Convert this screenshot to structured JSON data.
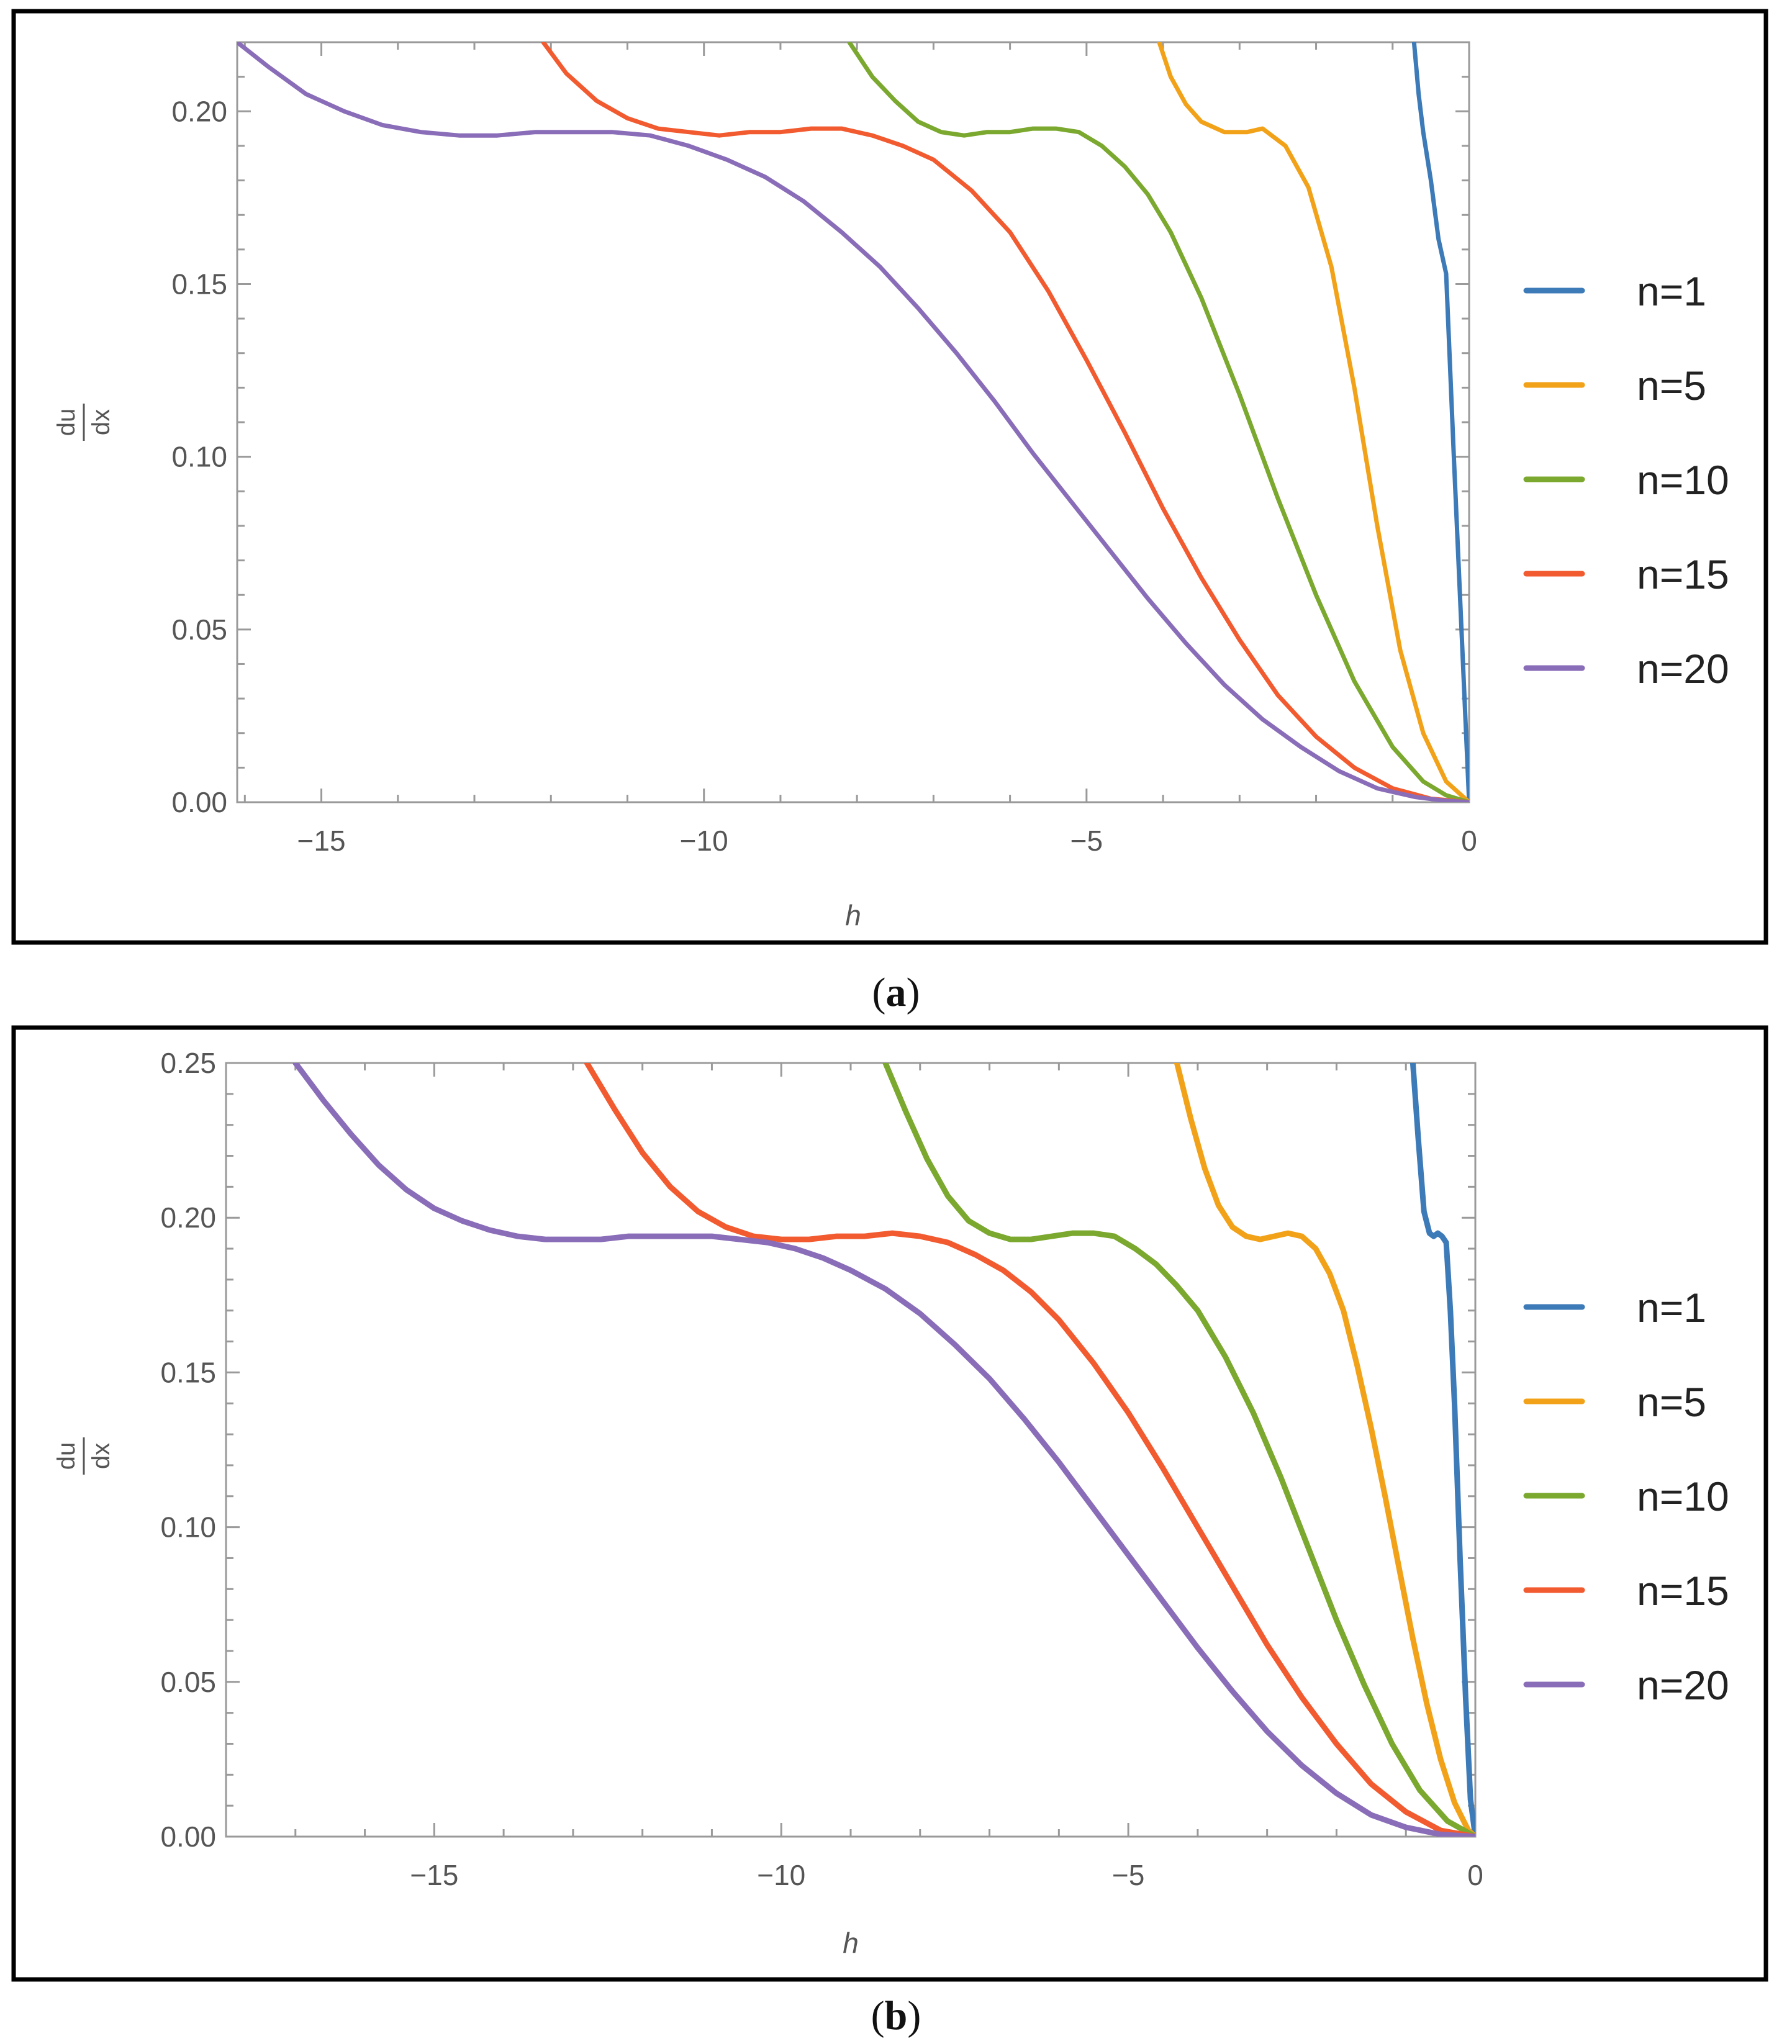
{
  "chart_data": [
    {
      "type": "line",
      "panel": "a",
      "caption_open": "(",
      "caption_letter": "a",
      "caption_close": ")",
      "xlabel": "h",
      "ylabel_num": "du",
      "ylabel_den": "dx",
      "xlim": [
        -16.1,
        0
      ],
      "ylim": [
        0,
        0.22
      ],
      "xticks": [
        -15,
        -10,
        -5,
        0
      ],
      "xtick_labels": [
        "−15",
        "−10",
        "−5",
        "0"
      ],
      "yticks": [
        0,
        0.05,
        0.1,
        0.15,
        0.2
      ],
      "ytick_labels": [
        "0.00",
        "0.05",
        "0.10",
        "0.15",
        "0.20"
      ],
      "legend": "right",
      "series": [
        {
          "name": "n=1",
          "color": "#3d7ab8",
          "x": [
            -0.72,
            -0.66,
            -0.6,
            -0.5,
            -0.4,
            -0.3,
            -0.2,
            -0.1,
            0
          ],
          "y": [
            0.22,
            0.205,
            0.194,
            0.18,
            0.163,
            0.153,
            0.1,
            0.05,
            0
          ]
        },
        {
          "name": "n=5",
          "color": "#f2a218",
          "x": [
            -4.05,
            -3.9,
            -3.7,
            -3.5,
            -3.2,
            -2.9,
            -2.7,
            -2.4,
            -2.1,
            -1.8,
            -1.5,
            -1.2,
            -0.9,
            -0.6,
            -0.3,
            0
          ],
          "y": [
            0.22,
            0.21,
            0.202,
            0.197,
            0.194,
            0.194,
            0.195,
            0.19,
            0.178,
            0.155,
            0.12,
            0.08,
            0.044,
            0.02,
            0.006,
            0
          ]
        },
        {
          "name": "n=10",
          "color": "#7ba82e",
          "x": [
            -8.1,
            -7.8,
            -7.5,
            -7.2,
            -6.9,
            -6.6,
            -6.3,
            -6.0,
            -5.7,
            -5.4,
            -5.1,
            -4.8,
            -4.5,
            -4.2,
            -3.9,
            -3.5,
            -3.0,
            -2.5,
            -2.0,
            -1.5,
            -1.0,
            -0.6,
            -0.3,
            0
          ],
          "y": [
            0.22,
            0.21,
            0.203,
            0.197,
            0.194,
            0.193,
            0.194,
            0.194,
            0.195,
            0.195,
            0.194,
            0.19,
            0.184,
            0.176,
            0.165,
            0.146,
            0.118,
            0.088,
            0.06,
            0.035,
            0.016,
            0.006,
            0.002,
            0
          ]
        },
        {
          "name": "n=15",
          "color": "#f25a2f",
          "x": [
            -12.1,
            -11.8,
            -11.4,
            -11.0,
            -10.6,
            -10.2,
            -9.8,
            -9.4,
            -9.0,
            -8.6,
            -8.2,
            -7.8,
            -7.4,
            -7.0,
            -6.5,
            -6.0,
            -5.5,
            -5.0,
            -4.5,
            -4.0,
            -3.5,
            -3.0,
            -2.5,
            -2.0,
            -1.5,
            -1.0,
            -0.5,
            0
          ],
          "y": [
            0.22,
            0.211,
            0.203,
            0.198,
            0.195,
            0.194,
            0.193,
            0.194,
            0.194,
            0.195,
            0.195,
            0.193,
            0.19,
            0.186,
            0.177,
            0.165,
            0.148,
            0.128,
            0.107,
            0.085,
            0.065,
            0.047,
            0.031,
            0.019,
            0.01,
            0.004,
            0.001,
            0
          ]
        },
        {
          "name": "n=20",
          "color": "#8a6db8",
          "x": [
            -16.1,
            -15.7,
            -15.2,
            -14.7,
            -14.2,
            -13.7,
            -13.2,
            -12.7,
            -12.2,
            -11.7,
            -11.2,
            -10.7,
            -10.2,
            -9.7,
            -9.2,
            -8.7,
            -8.2,
            -7.7,
            -7.2,
            -6.7,
            -6.2,
            -5.7,
            -5.2,
            -4.7,
            -4.2,
            -3.7,
            -3.2,
            -2.7,
            -2.2,
            -1.7,
            -1.2,
            -0.7,
            -0.3,
            0
          ],
          "y": [
            0.22,
            0.213,
            0.205,
            0.2,
            0.196,
            0.194,
            0.193,
            0.193,
            0.194,
            0.194,
            0.194,
            0.193,
            0.19,
            0.186,
            0.181,
            0.174,
            0.165,
            0.155,
            0.143,
            0.13,
            0.116,
            0.101,
            0.087,
            0.073,
            0.059,
            0.046,
            0.034,
            0.024,
            0.016,
            0.009,
            0.004,
            0.0015,
            0.0004,
            0
          ]
        }
      ]
    },
    {
      "type": "line",
      "panel": "b",
      "caption_open": "(",
      "caption_letter": "b",
      "caption_close": ")",
      "xlabel": "h",
      "ylabel_num": "du",
      "ylabel_den": "dx",
      "xlim": [
        -18,
        0
      ],
      "ylim": [
        0,
        0.25
      ],
      "xticks": [
        -15,
        -10,
        -5,
        0
      ],
      "xtick_labels": [
        "−15",
        "−10",
        "−5",
        "0"
      ],
      "yticks": [
        0,
        0.05,
        0.1,
        0.15,
        0.2,
        0.25
      ],
      "ytick_labels": [
        "0.00",
        "0.05",
        "0.10",
        "0.15",
        "0.20",
        "0.25"
      ],
      "legend": "right",
      "series": [
        {
          "name": "n=1",
          "color": "#3d7ab8",
          "x": [
            -0.9,
            -0.82,
            -0.74,
            -0.66,
            -0.6,
            -0.54,
            -0.48,
            -0.42,
            -0.36,
            -0.3,
            -0.22,
            -0.14,
            -0.07,
            0
          ],
          "y": [
            0.25,
            0.225,
            0.202,
            0.195,
            0.194,
            0.195,
            0.194,
            0.192,
            0.17,
            0.14,
            0.09,
            0.045,
            0.012,
            0
          ]
        },
        {
          "name": "n=5",
          "color": "#f2a218",
          "x": [
            -4.3,
            -4.1,
            -3.9,
            -3.7,
            -3.5,
            -3.3,
            -3.1,
            -2.9,
            -2.7,
            -2.5,
            -2.3,
            -2.1,
            -1.9,
            -1.7,
            -1.5,
            -1.3,
            -1.1,
            -0.9,
            -0.7,
            -0.5,
            -0.3,
            -0.1,
            0
          ],
          "y": [
            0.25,
            0.232,
            0.216,
            0.204,
            0.197,
            0.194,
            0.193,
            0.194,
            0.195,
            0.194,
            0.19,
            0.182,
            0.17,
            0.152,
            0.132,
            0.11,
            0.087,
            0.064,
            0.043,
            0.025,
            0.011,
            0.002,
            0
          ]
        },
        {
          "name": "n=10",
          "color": "#7ba82e",
          "x": [
            -8.5,
            -8.2,
            -7.9,
            -7.6,
            -7.3,
            -7.0,
            -6.7,
            -6.4,
            -6.1,
            -5.8,
            -5.5,
            -5.2,
            -4.9,
            -4.6,
            -4.3,
            -4.0,
            -3.6,
            -3.2,
            -2.8,
            -2.4,
            -2.0,
            -1.6,
            -1.2,
            -0.8,
            -0.4,
            0
          ],
          "y": [
            0.25,
            0.234,
            0.219,
            0.207,
            0.199,
            0.195,
            0.193,
            0.193,
            0.194,
            0.195,
            0.195,
            0.194,
            0.19,
            0.185,
            0.178,
            0.17,
            0.155,
            0.137,
            0.116,
            0.093,
            0.07,
            0.049,
            0.03,
            0.015,
            0.005,
            0
          ]
        },
        {
          "name": "n=15",
          "color": "#f25a2f",
          "x": [
            -12.8,
            -12.4,
            -12.0,
            -11.6,
            -11.2,
            -10.8,
            -10.4,
            -10.0,
            -9.6,
            -9.2,
            -8.8,
            -8.4,
            -8.0,
            -7.6,
            -7.2,
            -6.8,
            -6.4,
            -6.0,
            -5.5,
            -5.0,
            -4.5,
            -4.0,
            -3.5,
            -3.0,
            -2.5,
            -2.0,
            -1.5,
            -1.0,
            -0.5,
            0
          ],
          "y": [
            0.25,
            0.235,
            0.221,
            0.21,
            0.202,
            0.197,
            0.194,
            0.193,
            0.193,
            0.194,
            0.194,
            0.195,
            0.194,
            0.192,
            0.188,
            0.183,
            0.176,
            0.167,
            0.153,
            0.137,
            0.119,
            0.1,
            0.081,
            0.062,
            0.045,
            0.03,
            0.017,
            0.008,
            0.002,
            0
          ]
        },
        {
          "name": "n=20",
          "color": "#8a6db8",
          "x": [
            -17.0,
            -16.6,
            -16.2,
            -15.8,
            -15.4,
            -15.0,
            -14.6,
            -14.2,
            -13.8,
            -13.4,
            -13.0,
            -12.6,
            -12.2,
            -11.8,
            -11.4,
            -11.0,
            -10.6,
            -10.2,
            -9.8,
            -9.4,
            -9.0,
            -8.5,
            -8.0,
            -7.5,
            -7.0,
            -6.5,
            -6.0,
            -5.5,
            -5.0,
            -4.5,
            -4.0,
            -3.5,
            -3.0,
            -2.5,
            -2.0,
            -1.5,
            -1.0,
            -0.5,
            0
          ],
          "y": [
            0.25,
            0.238,
            0.227,
            0.217,
            0.209,
            0.203,
            0.199,
            0.196,
            0.194,
            0.193,
            0.193,
            0.193,
            0.194,
            0.194,
            0.194,
            0.194,
            0.193,
            0.192,
            0.19,
            0.187,
            0.183,
            0.177,
            0.169,
            0.159,
            0.148,
            0.135,
            0.121,
            0.106,
            0.091,
            0.076,
            0.061,
            0.047,
            0.034,
            0.023,
            0.014,
            0.007,
            0.003,
            0.0007,
            0
          ]
        }
      ]
    }
  ]
}
